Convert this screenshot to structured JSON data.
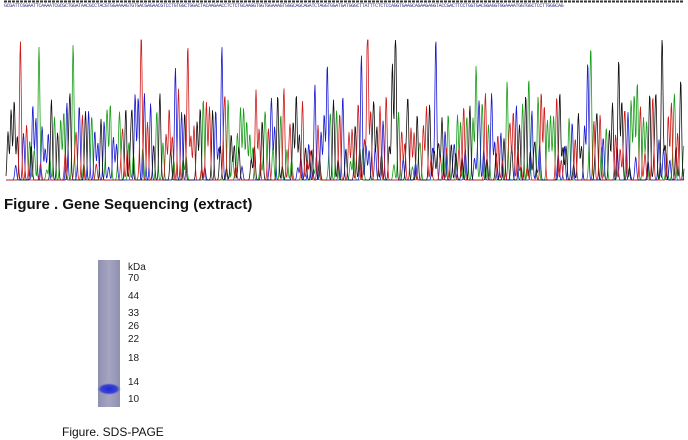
{
  "sequence": "GCGATTCGGAATTCAAAATCGCGCTGGATAACGCCTACGTGGAAAAGTGTGACGAGAACGTCCTGTGGCTGGACTACAAGAACCTCTCTGCAAGGTGGTGGAAAGTGGGCAGCAGATCTAGGTGGATGATGGGCTTATTTCTCTCCAGGTGAAGCAGAAGAGGTACCGACTTCCTGGTGACGGAGGTGGAAAATGGTGGCTCCTTGGGCAG",
  "sequencing_caption": "Figure . Gene Sequencing (extract)",
  "gel": {
    "unit": "kDa",
    "markers": [
      70,
      44,
      33,
      26,
      22,
      18,
      14,
      10
    ]
  },
  "gel_caption": "Figure. SDS-PAGE"
}
